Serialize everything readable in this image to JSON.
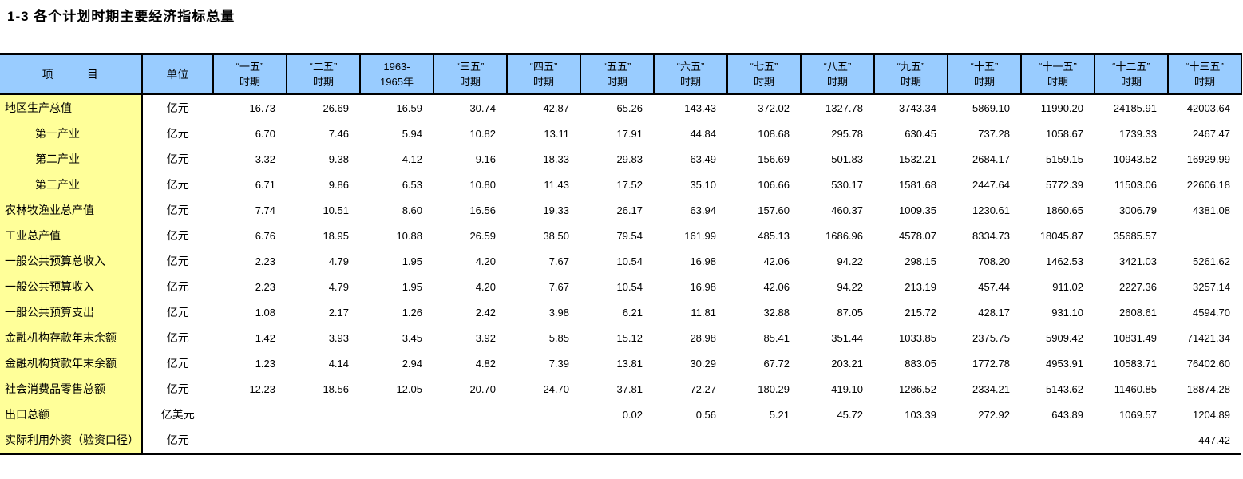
{
  "title": "1-3 各个计划时期主要经济指标总量",
  "colors": {
    "header_bg": "#99CCFF",
    "stub_bg": "#FFFF99",
    "border": "#000000",
    "text": "#000000"
  },
  "chart_data": {
    "type": "table",
    "title": "1-3 各个计划时期主要经济指标总量",
    "stub_header": "项　　　目",
    "unit_header": "单位",
    "columns": [
      "“一五”\n时期",
      "“二五”\n时期",
      "1963-\n1965年",
      "“三五”\n时期",
      "“四五”\n时期",
      "“五五”\n时期",
      "“六五”\n时期",
      "“七五”\n时期",
      "“八五”\n时期",
      "“九五”\n时期",
      "“十五”\n时期",
      "“十一五”\n时期",
      "“十二五”\n时期",
      "“十三五”\n时期"
    ],
    "rows": [
      {
        "label": "地区生产总值",
        "indent": false,
        "unit": "亿元",
        "values": [
          "16.73",
          "26.69",
          "16.59",
          "30.74",
          "42.87",
          "65.26",
          "143.43",
          "372.02",
          "1327.78",
          "3743.34",
          "5869.10",
          "11990.20",
          "24185.91",
          "42003.64"
        ]
      },
      {
        "label": "第一产业",
        "indent": true,
        "unit": "亿元",
        "values": [
          "6.70",
          "7.46",
          "5.94",
          "10.82",
          "13.11",
          "17.91",
          "44.84",
          "108.68",
          "295.78",
          "630.45",
          "737.28",
          "1058.67",
          "1739.33",
          "2467.47"
        ]
      },
      {
        "label": "第二产业",
        "indent": true,
        "unit": "亿元",
        "values": [
          "3.32",
          "9.38",
          "4.12",
          "9.16",
          "18.33",
          "29.83",
          "63.49",
          "156.69",
          "501.83",
          "1532.21",
          "2684.17",
          "5159.15",
          "10943.52",
          "16929.99"
        ]
      },
      {
        "label": "第三产业",
        "indent": true,
        "unit": "亿元",
        "values": [
          "6.71",
          "9.86",
          "6.53",
          "10.80",
          "11.43",
          "17.52",
          "35.10",
          "106.66",
          "530.17",
          "1581.68",
          "2447.64",
          "5772.39",
          "11503.06",
          "22606.18"
        ]
      },
      {
        "label": "农林牧渔业总产值",
        "indent": false,
        "unit": "亿元",
        "values": [
          "7.74",
          "10.51",
          "8.60",
          "16.56",
          "19.33",
          "26.17",
          "63.94",
          "157.60",
          "460.37",
          "1009.35",
          "1230.61",
          "1860.65",
          "3006.79",
          "4381.08"
        ]
      },
      {
        "label": "工业总产值",
        "indent": false,
        "unit": "亿元",
        "values": [
          "6.76",
          "18.95",
          "10.88",
          "26.59",
          "38.50",
          "79.54",
          "161.99",
          "485.13",
          "1686.96",
          "4578.07",
          "8334.73",
          "18045.87",
          "35685.57",
          ""
        ]
      },
      {
        "label": "一般公共预算总收入",
        "indent": false,
        "unit": "亿元",
        "values": [
          "2.23",
          "4.79",
          "1.95",
          "4.20",
          "7.67",
          "10.54",
          "16.98",
          "42.06",
          "94.22",
          "298.15",
          "708.20",
          "1462.53",
          "3421.03",
          "5261.62"
        ]
      },
      {
        "label": "一般公共预算收入",
        "indent": false,
        "unit": "亿元",
        "values": [
          "2.23",
          "4.79",
          "1.95",
          "4.20",
          "7.67",
          "10.54",
          "16.98",
          "42.06",
          "94.22",
          "213.19",
          "457.44",
          "911.02",
          "2227.36",
          "3257.14"
        ]
      },
      {
        "label": "一般公共预算支出",
        "indent": false,
        "unit": "亿元",
        "values": [
          "1.08",
          "2.17",
          "1.26",
          "2.42",
          "3.98",
          "6.21",
          "11.81",
          "32.88",
          "87.05",
          "215.72",
          "428.17",
          "931.10",
          "2608.61",
          "4594.70"
        ]
      },
      {
        "label": "金融机构存款年末余额",
        "indent": false,
        "unit": "亿元",
        "values": [
          "1.42",
          "3.93",
          "3.45",
          "3.92",
          "5.85",
          "15.12",
          "28.98",
          "85.41",
          "351.44",
          "1033.85",
          "2375.75",
          "5909.42",
          "10831.49",
          "71421.34"
        ]
      },
      {
        "label": "金融机构贷款年末余额",
        "indent": false,
        "unit": "亿元",
        "values": [
          "1.23",
          "4.14",
          "2.94",
          "4.82",
          "7.39",
          "13.81",
          "30.29",
          "67.72",
          "203.21",
          "883.05",
          "1772.78",
          "4953.91",
          "10583.71",
          "76402.60"
        ]
      },
      {
        "label": "社会消费品零售总额",
        "indent": false,
        "unit": "亿元",
        "values": [
          "12.23",
          "18.56",
          "12.05",
          "20.70",
          "24.70",
          "37.81",
          "72.27",
          "180.29",
          "419.10",
          "1286.52",
          "2334.21",
          "5143.62",
          "11460.85",
          "18874.28"
        ]
      },
      {
        "label": "出口总额",
        "indent": false,
        "unit": "亿美元",
        "values": [
          "",
          "",
          "",
          "",
          "",
          "0.02",
          "0.56",
          "5.21",
          "45.72",
          "103.39",
          "272.92",
          "643.89",
          "1069.57",
          "1204.89"
        ]
      },
      {
        "label": "实际利用外资（验资口径）",
        "indent": false,
        "unit": "亿元",
        "values": [
          "",
          "",
          "",
          "",
          "",
          "",
          "",
          "",
          "",
          "",
          "",
          "",
          "",
          "447.42"
        ]
      }
    ]
  }
}
